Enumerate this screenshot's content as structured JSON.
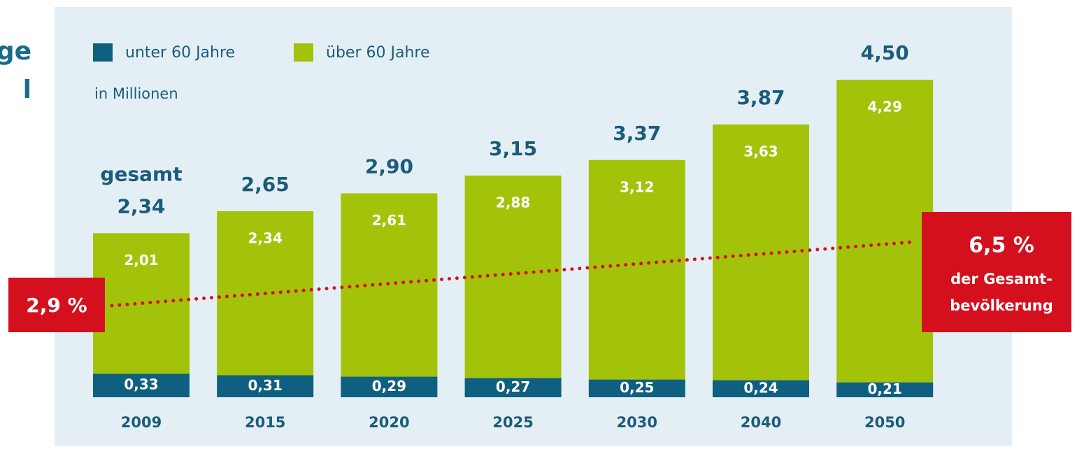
{
  "chart_data": {
    "type": "stacked_bar",
    "title_lines": [
      "ge",
      "l"
    ],
    "subtitle": "in Millionen",
    "total_caption": "gesamt",
    "categories": [
      "2009",
      "2015",
      "2020",
      "2025",
      "2030",
      "2040",
      "2050"
    ],
    "series": [
      {
        "name": "unter 60 Jahre",
        "color": "#0f5f80",
        "values": [
          0.33,
          0.31,
          0.29,
          0.27,
          0.25,
          0.24,
          0.21
        ],
        "value_labels": [
          "0,33",
          "0,31",
          "0,29",
          "0,27",
          "0,25",
          "0,24",
          "0,21"
        ]
      },
      {
        "name": "über 60 Jahre",
        "color": "#a3c30a",
        "values": [
          2.01,
          2.34,
          2.61,
          2.88,
          3.12,
          3.63,
          4.29
        ],
        "value_labels": [
          "2,01",
          "2,34",
          "2,61",
          "2,88",
          "3,12",
          "3,63",
          "4,29"
        ]
      }
    ],
    "totals": [
      2.34,
      2.65,
      2.9,
      3.15,
      3.37,
      3.87,
      4.5
    ],
    "total_labels": [
      "2,34",
      "2,65",
      "2,90",
      "3,15",
      "3,37",
      "3,87",
      "4,50"
    ],
    "share": {
      "values": [
        2.9,
        6.5
      ],
      "value_labels": [
        "2,9 %",
        "6,5 %"
      ],
      "caption": [
        "der Gesamt-",
        "bevölkerung"
      ],
      "color": "#d5101e"
    }
  }
}
